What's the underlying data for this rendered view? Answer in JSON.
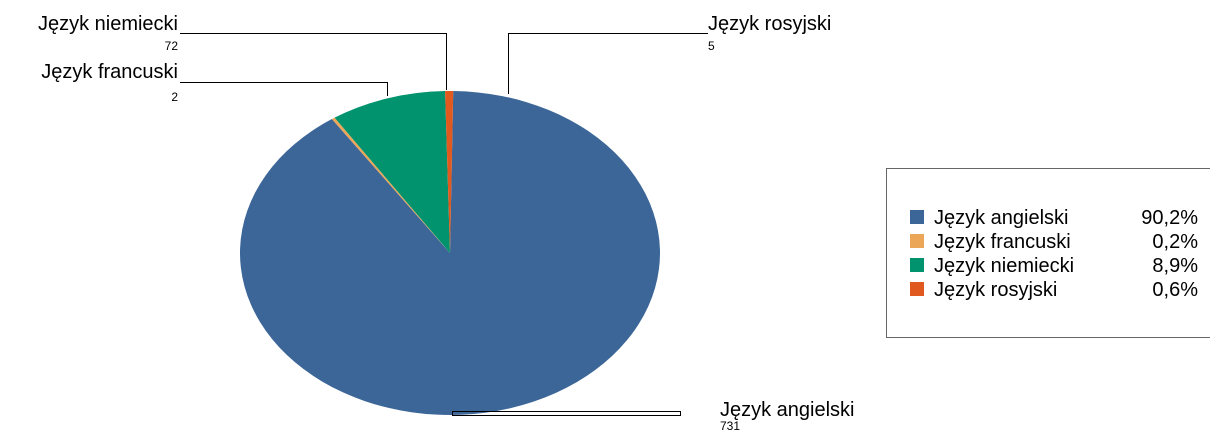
{
  "chart_data": {
    "type": "pie",
    "title": "",
    "slices": [
      {
        "label": "Język angielski",
        "value": 731,
        "percent": "90,2%",
        "color": "#3c6698"
      },
      {
        "label": "Język francuski",
        "value": 2,
        "percent": "0,2%",
        "color": "#eba757"
      },
      {
        "label": "Język niemiecki",
        "value": 72,
        "percent": "8,9%",
        "color": "#00936e"
      },
      {
        "label": "Język rosyjski",
        "value": 5,
        "percent": "0,6%",
        "color": "#e0591f"
      }
    ],
    "legend_position": "right"
  }
}
